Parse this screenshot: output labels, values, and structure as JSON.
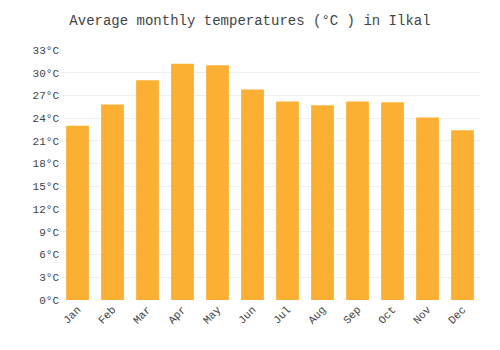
{
  "chart_data": {
    "type": "bar",
    "title": "Average monthly temperatures (°C ) in Ilkal",
    "categories": [
      "Jan",
      "Feb",
      "Mar",
      "Apr",
      "May",
      "Jun",
      "Jul",
      "Aug",
      "Sep",
      "Oct",
      "Nov",
      "Dec"
    ],
    "values": [
      23.0,
      25.8,
      29.0,
      31.2,
      31.0,
      27.8,
      26.2,
      25.7,
      26.2,
      26.1,
      24.1,
      22.4
    ],
    "color": "#FBB034",
    "ylim": [
      0,
      33
    ],
    "yticks": [
      {
        "value": 0,
        "label": "0°C"
      },
      {
        "value": 3,
        "label": "3°C"
      },
      {
        "value": 6,
        "label": "6°C"
      },
      {
        "value": 9,
        "label": "9°C"
      },
      {
        "value": 12,
        "label": "12°C"
      },
      {
        "value": 15,
        "label": "15°C"
      },
      {
        "value": 18,
        "label": "18°C"
      },
      {
        "value": 21,
        "label": "21°C"
      },
      {
        "value": 24,
        "label": "24°C"
      },
      {
        "value": 27,
        "label": "27°C"
      },
      {
        "value": 30,
        "label": "30°C"
      },
      {
        "value": 33,
        "label": "33°C"
      }
    ],
    "grid": true
  }
}
